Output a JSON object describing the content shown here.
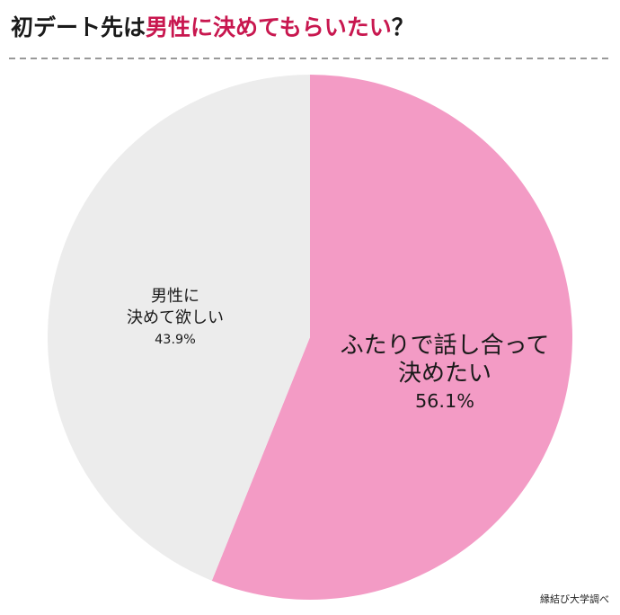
{
  "chart_data": {
    "type": "pie",
    "title": [
      {
        "text": "初デート先は",
        "color": "#1a1a1a"
      },
      {
        "text": "男性に決めてもらいたい",
        "color": "#c8174f"
      },
      {
        "text": "？",
        "color": "#1a1a1a"
      }
    ],
    "categories": [
      [
        "ふたりで話し合って",
        "決めたい"
      ],
      [
        "男性に",
        "決めて欲しい"
      ]
    ],
    "values": [
      56.1,
      43.9
    ],
    "value_labels": [
      "56.1%",
      "43.9%"
    ],
    "colors": [
      "#f39bc5",
      "#ececec"
    ],
    "source": "縁結び大学調べ"
  }
}
